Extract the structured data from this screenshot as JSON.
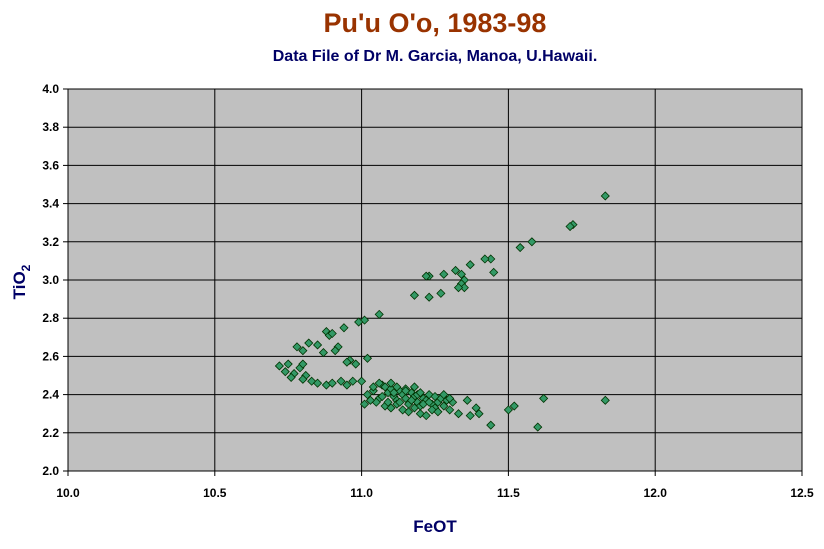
{
  "chart_data": {
    "type": "scatter",
    "title": "Pu'u O'o, 1983-98",
    "subtitle": "Data File of Dr M. Garcia, Manoa, U.Hawaii.",
    "xlabel": "FeOT",
    "ylabel_main": "TiO",
    "ylabel_sub": "2",
    "xlim": [
      10.0,
      12.5
    ],
    "ylim": [
      2.0,
      4.0
    ],
    "x_ticks": [
      "10.0",
      "10.5",
      "11.0",
      "11.5",
      "12.0",
      "12.5"
    ],
    "y_ticks": [
      "2.0",
      "2.2",
      "2.4",
      "2.6",
      "2.8",
      "3.0",
      "3.2",
      "3.4",
      "3.6",
      "3.8",
      "4.0"
    ],
    "grid": true,
    "legend": "none",
    "colors": {
      "plot_bg": "#c0c0c0",
      "marker": "#339966",
      "marker_edge": "#003300",
      "title": "#993300",
      "subtitle": "#000066"
    },
    "points": [
      [
        11.83,
        3.44
      ],
      [
        11.72,
        3.29
      ],
      [
        11.71,
        3.28
      ],
      [
        11.58,
        3.2
      ],
      [
        11.54,
        3.17
      ],
      [
        11.44,
        3.11
      ],
      [
        11.42,
        3.11
      ],
      [
        11.37,
        3.08
      ],
      [
        11.32,
        3.05
      ],
      [
        11.34,
        3.03
      ],
      [
        11.28,
        3.03
      ],
      [
        11.23,
        3.02
      ],
      [
        11.22,
        3.02
      ],
      [
        11.35,
        3.0
      ],
      [
        11.34,
        2.98
      ],
      [
        11.35,
        2.96
      ],
      [
        11.33,
        2.96
      ],
      [
        11.45,
        3.04
      ],
      [
        11.27,
        2.93
      ],
      [
        11.18,
        2.92
      ],
      [
        11.23,
        2.91
      ],
      [
        11.06,
        2.82
      ],
      [
        11.01,
        2.79
      ],
      [
        10.99,
        2.78
      ],
      [
        10.94,
        2.75
      ],
      [
        10.88,
        2.73
      ],
      [
        10.89,
        2.71
      ],
      [
        10.9,
        2.72
      ],
      [
        10.92,
        2.65
      ],
      [
        10.91,
        2.63
      ],
      [
        10.87,
        2.62
      ],
      [
        10.82,
        2.67
      ],
      [
        10.85,
        2.66
      ],
      [
        10.78,
        2.65
      ],
      [
        10.8,
        2.63
      ],
      [
        10.96,
        2.58
      ],
      [
        10.98,
        2.56
      ],
      [
        11.02,
        2.59
      ],
      [
        10.95,
        2.57
      ],
      [
        10.72,
        2.55
      ],
      [
        10.74,
        2.52
      ],
      [
        10.75,
        2.56
      ],
      [
        10.77,
        2.51
      ],
      [
        10.76,
        2.49
      ],
      [
        10.79,
        2.54
      ],
      [
        10.8,
        2.56
      ],
      [
        10.81,
        2.5
      ],
      [
        10.8,
        2.48
      ],
      [
        10.83,
        2.47
      ],
      [
        10.85,
        2.46
      ],
      [
        10.88,
        2.45
      ],
      [
        10.9,
        2.46
      ],
      [
        10.93,
        2.47
      ],
      [
        10.95,
        2.45
      ],
      [
        10.97,
        2.47
      ],
      [
        11.0,
        2.47
      ],
      [
        11.02,
        2.4
      ],
      [
        11.04,
        2.42
      ],
      [
        11.06,
        2.38
      ],
      [
        11.07,
        2.45
      ],
      [
        11.08,
        2.44
      ],
      [
        11.09,
        2.41
      ],
      [
        11.1,
        2.43
      ],
      [
        11.11,
        2.39
      ],
      [
        11.12,
        2.37
      ],
      [
        11.13,
        2.42
      ],
      [
        11.14,
        2.4
      ],
      [
        11.15,
        2.38
      ],
      [
        11.16,
        2.35
      ],
      [
        11.17,
        2.41
      ],
      [
        11.18,
        2.39
      ],
      [
        11.19,
        2.36
      ],
      [
        11.2,
        2.34
      ],
      [
        11.21,
        2.38
      ],
      [
        11.22,
        2.37
      ],
      [
        11.23,
        2.4
      ],
      [
        11.24,
        2.35
      ],
      [
        11.25,
        2.33
      ],
      [
        11.26,
        2.36
      ],
      [
        11.27,
        2.38
      ],
      [
        11.28,
        2.34
      ],
      [
        11.29,
        2.37
      ],
      [
        11.3,
        2.32
      ],
      [
        11.05,
        2.36
      ],
      [
        11.08,
        2.34
      ],
      [
        11.1,
        2.33
      ],
      [
        11.12,
        2.35
      ],
      [
        11.14,
        2.32
      ],
      [
        11.16,
        2.31
      ],
      [
        11.18,
        2.33
      ],
      [
        11.2,
        2.3
      ],
      [
        11.22,
        2.29
      ],
      [
        11.24,
        2.32
      ],
      [
        11.26,
        2.31
      ],
      [
        11.03,
        2.37
      ],
      [
        11.07,
        2.39
      ],
      [
        11.09,
        2.36
      ],
      [
        11.11,
        2.41
      ],
      [
        11.13,
        2.36
      ],
      [
        11.15,
        2.43
      ],
      [
        11.17,
        2.37
      ],
      [
        11.19,
        2.4
      ],
      [
        11.21,
        2.35
      ],
      [
        11.23,
        2.36
      ],
      [
        11.36,
        2.37
      ],
      [
        11.33,
        2.3
      ],
      [
        11.37,
        2.29
      ],
      [
        11.4,
        2.3
      ],
      [
        11.39,
        2.33
      ],
      [
        11.44,
        2.24
      ],
      [
        11.5,
        2.32
      ],
      [
        11.52,
        2.34
      ],
      [
        11.6,
        2.23
      ],
      [
        11.62,
        2.38
      ],
      [
        11.83,
        2.37
      ],
      [
        11.01,
        2.35
      ],
      [
        11.04,
        2.44
      ],
      [
        11.06,
        2.46
      ],
      [
        11.12,
        2.44
      ],
      [
        11.1,
        2.46
      ],
      [
        11.15,
        2.42
      ],
      [
        11.18,
        2.44
      ],
      [
        11.2,
        2.41
      ],
      [
        11.25,
        2.39
      ],
      [
        11.28,
        2.4
      ],
      [
        11.31,
        2.36
      ],
      [
        11.3,
        2.38
      ]
    ]
  }
}
